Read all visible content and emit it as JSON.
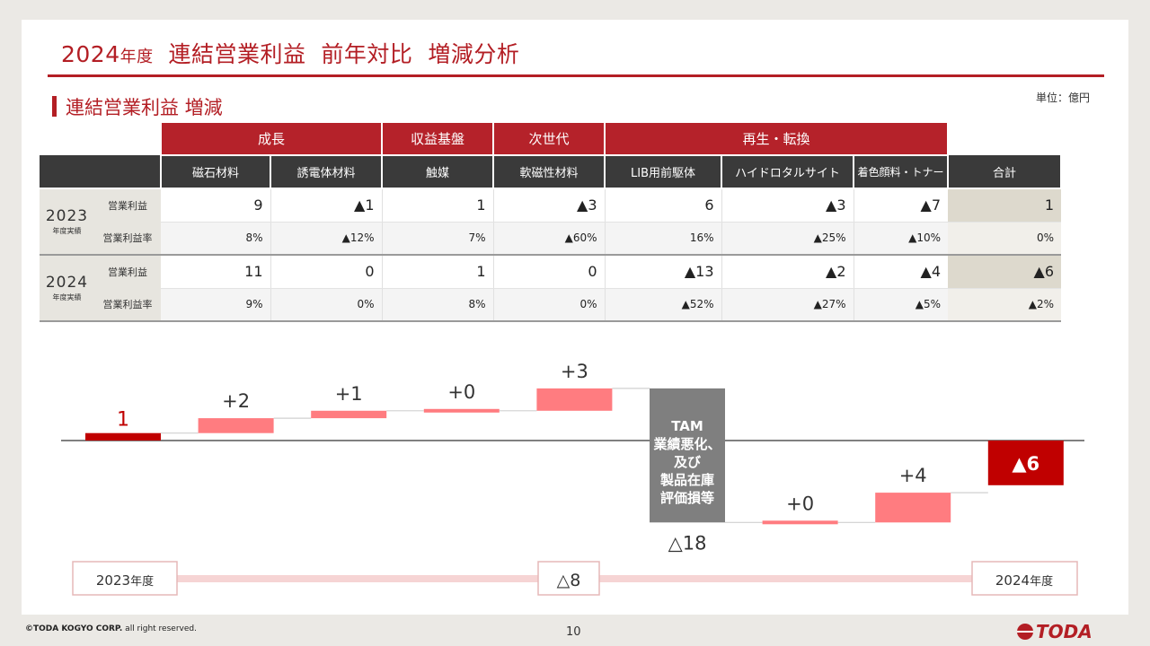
{
  "header": {
    "title_year": "2024",
    "title_year_suffix": "年度",
    "title_rest": "連結営業利益  前年対比  増減分析",
    "section": "連結営業利益 増減",
    "unit": "単位：億円"
  },
  "table": {
    "categories": [
      "成長",
      "収益基盤",
      "次世代",
      "再生・転換"
    ],
    "columns": [
      "磁石材料",
      "誘電体材料",
      "触媒",
      "軟磁性材料",
      "LIB用前駆体",
      "ハイドロタルサイト",
      "着色顔料・トナー",
      "合計"
    ],
    "years": [
      {
        "year": "2023",
        "year_sub": "年度実績",
        "profit_label": "営業利益",
        "profit": [
          "9",
          "▲1",
          "1",
          "▲3",
          "6",
          "▲3",
          "▲7",
          "1"
        ],
        "rate_label": "営業利益率",
        "rate": [
          "8%",
          "▲12%",
          "7%",
          "▲60%",
          "16%",
          "▲25%",
          "▲10%",
          "0%"
        ]
      },
      {
        "year": "2024",
        "year_sub": "年度実績",
        "profit_label": "営業利益",
        "profit": [
          "11",
          "0",
          "1",
          "0",
          "▲13",
          "▲2",
          "▲4",
          "▲6"
        ],
        "rate_label": "営業利益率",
        "rate": [
          "9%",
          "0%",
          "8%",
          "0%",
          "▲52%",
          "▲27%",
          "▲5%",
          "▲2%"
        ]
      }
    ]
  },
  "chart_data": {
    "type": "bar",
    "subtype": "waterfall",
    "ylabel": "",
    "xlabel": "",
    "steps": [
      {
        "label": "1",
        "kind": "start",
        "value": 1
      },
      {
        "label": "+2",
        "kind": "increase",
        "value": 2
      },
      {
        "label": "+1",
        "kind": "increase",
        "value": 1
      },
      {
        "label": "+0",
        "kind": "increase",
        "value": 0
      },
      {
        "label": "+3",
        "kind": "increase",
        "value": 3
      },
      {
        "label": "△18",
        "kind": "decrease",
        "value": -18,
        "note": "TAM\n業績悪化、\n及び\n製品在庫\n評価損等"
      },
      {
        "label": "+0",
        "kind": "increase",
        "value": 0
      },
      {
        "label": "+4",
        "kind": "increase",
        "value": 4
      },
      {
        "label": "▲6",
        "kind": "end",
        "value": -6
      }
    ],
    "colors": {
      "total": "#c00000",
      "increase": "#ff7c80",
      "decrease": "#7f7f7f",
      "arrow": "#f6d4d4",
      "box_border": "#e6b8b8"
    },
    "period_start": "2023",
    "period_end": "2024",
    "period_suffix": "年度",
    "change": "△8"
  },
  "footer": {
    "copyright_prefix": "©TODA KOGYO CORP.",
    "copyright_suffix": " all right reserved.",
    "page": "10",
    "logo": "TODA"
  }
}
